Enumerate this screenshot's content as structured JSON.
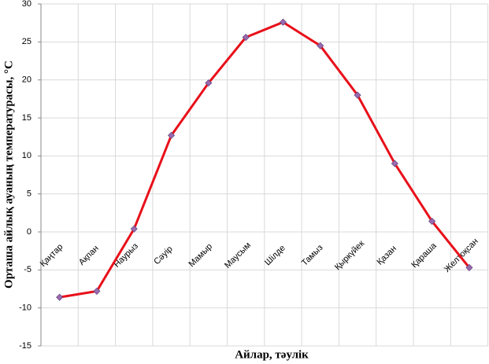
{
  "chart_data": {
    "type": "line",
    "y_label": "Орташа айлық ауаның температурасы, °C",
    "x_label": "Айлар, тәулік",
    "categories": [
      "Қаңтар",
      "Ақпан",
      "Наурыз",
      "Сәуір",
      "Мамыр",
      "Маусым",
      "Шілде",
      "Тамыз",
      "Қыркүйек",
      "Қазан",
      "Қараша",
      "Желтоқсан"
    ],
    "series": [
      {
        "color": "#e8101a",
        "marker_color": "#9a6bb0",
        "values": [
          -8.6,
          -7.8,
          0.4,
          12.7,
          19.6,
          25.6,
          27.6,
          24.5,
          18,
          9,
          1.4,
          -4.7
        ]
      }
    ],
    "ylim": [
      -15,
      30
    ],
    "yticks": [
      -15,
      -10,
      -5,
      0,
      5,
      10,
      15,
      20,
      25,
      30
    ],
    "grid": true
  }
}
